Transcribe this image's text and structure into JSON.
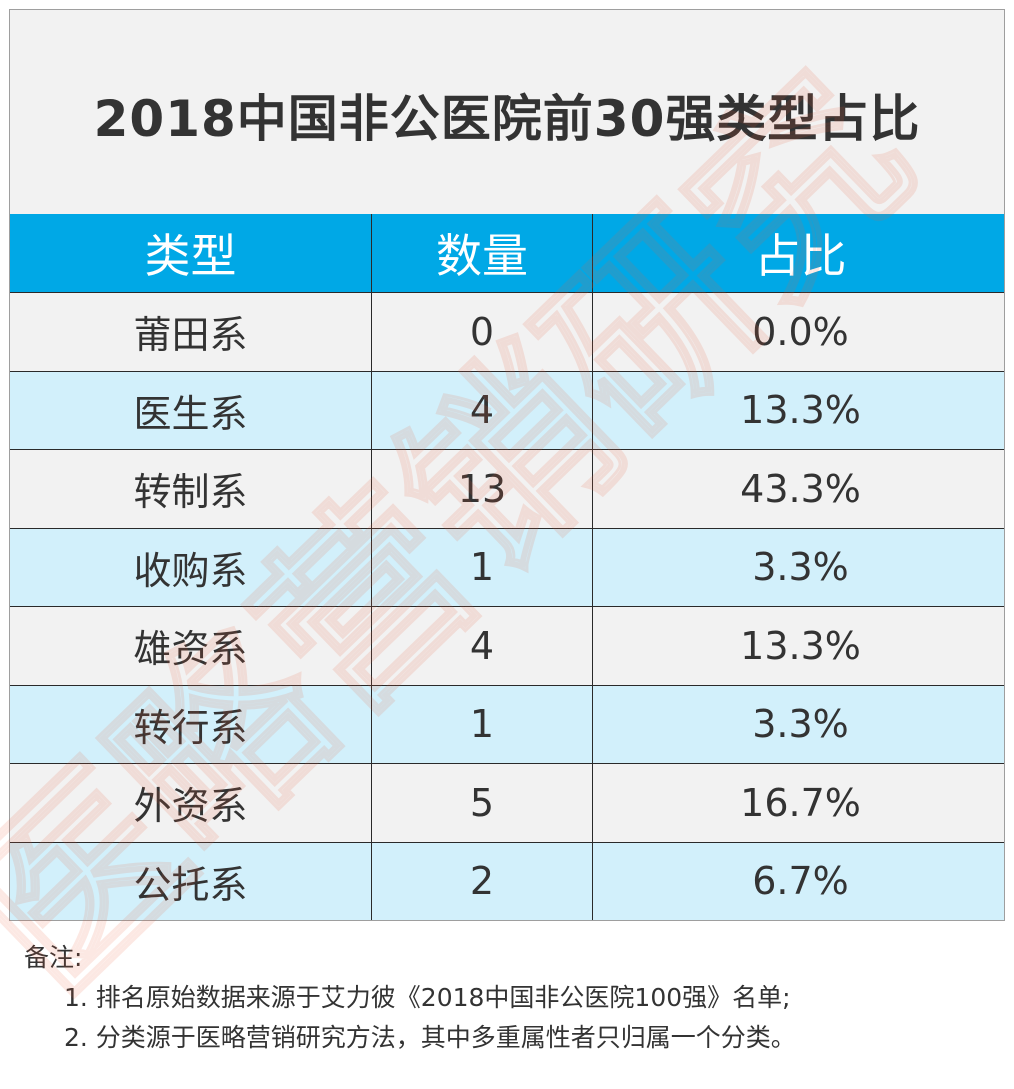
{
  "title": "2018中国非公医院前30强类型占比",
  "table": {
    "headers": [
      "类型",
      "数量",
      "占比"
    ],
    "rows": [
      {
        "type": "莆田系",
        "count": "0",
        "share": "0.0%"
      },
      {
        "type": "医生系",
        "count": "4",
        "share": "13.3%"
      },
      {
        "type": "转制系",
        "count": "13",
        "share": "43.3%"
      },
      {
        "type": "收购系",
        "count": "1",
        "share": "3.3%"
      },
      {
        "type": "雄资系",
        "count": "4",
        "share": "13.3%"
      },
      {
        "type": "转行系",
        "count": "1",
        "share": "3.3%"
      },
      {
        "type": "外资系",
        "count": "5",
        "share": "16.7%"
      },
      {
        "type": "公托系",
        "count": "2",
        "share": "6.7%"
      }
    ]
  },
  "notes": {
    "label": "备注:",
    "items": [
      "1. 排名原始数据来源于艾力彼《2018中国非公医院100强》名单;",
      "2. 分类源于医略营销研究方法，其中多重属性者只归属一个分类。"
    ]
  },
  "watermark": {
    "text": "医略营销研究",
    "color": "#e85a3c"
  },
  "colors": {
    "header_bg": "#00a8e6",
    "row_gray": "#f2f2f2",
    "row_blue": "#d2f0fb",
    "title_bg": "#f2f2f2"
  }
}
